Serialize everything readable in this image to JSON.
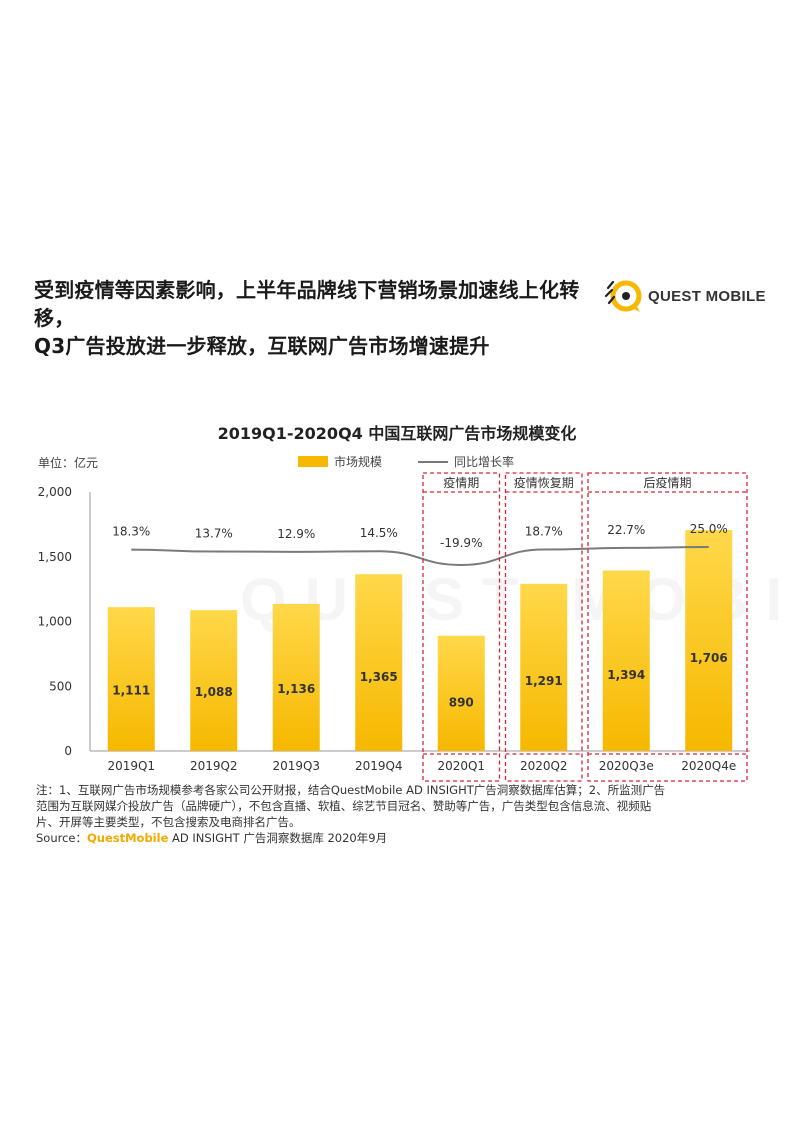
{
  "headline": {
    "line1": "受到疫情等因素影响，上半年品牌线下营销场景加速线上化转移，",
    "line2": "Q3广告投放进一步释放，互联网广告市场增速提升"
  },
  "logo": {
    "text": "QUEST MOBILE",
    "icon": "quest-mobile-logo-icon",
    "color": "#f6b800"
  },
  "legend": {
    "bar_label": "市场规模",
    "line_label": "同比增长率"
  },
  "colors": {
    "bar": "#f6b800",
    "bar_light": "#ffd84a",
    "line": "#7a7a7a",
    "dashed_box": "#d9263a"
  },
  "chart_data": {
    "type": "bar",
    "title": "2019Q1-2020Q4 中国互联网广告市场规模变化",
    "ylabel": "单位：亿元",
    "ylim": [
      0,
      2000
    ],
    "yticks": [
      "0",
      "500",
      "1,000",
      "1,500",
      "2,000"
    ],
    "categories": [
      "2019Q1",
      "2019Q2",
      "2019Q3",
      "2019Q4",
      "2020Q1",
      "2020Q2",
      "2020Q3e",
      "2020Q4e"
    ],
    "series": [
      {
        "name": "市场规模",
        "type": "bar",
        "values": [
          1111,
          1088,
          1136,
          1365,
          890,
          1291,
          1394,
          1706
        ],
        "labels": [
          "1,111",
          "1,088",
          "1,136",
          "1,365",
          "890",
          "1,291",
          "1,394",
          "1,706"
        ]
      },
      {
        "name": "同比增长率",
        "type": "line",
        "values": [
          18.3,
          13.7,
          12.9,
          14.5,
          -19.9,
          18.7,
          22.7,
          25.0
        ],
        "labels": [
          "18.3%",
          "13.7%",
          "12.9%",
          "14.5%",
          "-19.9%",
          "18.7%",
          "22.7%",
          "25.0%"
        ]
      }
    ],
    "annotations": [
      {
        "label": "疫情期",
        "categories": [
          "2020Q1"
        ]
      },
      {
        "label": "疫情恢复期",
        "categories": [
          "2020Q2"
        ]
      },
      {
        "label": "后疫情期",
        "categories": [
          "2020Q3e",
          "2020Q4e"
        ]
      }
    ],
    "grid": false
  },
  "notes": {
    "line1": "注：1、互联网广告市场规模参考各家公司公开财报，结合QuestMobile AD INSIGHT广告洞察数据库估算；2、所监测广告",
    "line2": "范围为互联网媒介投放广告（品牌硬广），不包含直播、软植、综艺节目冠名、赞助等广告，广告类型包含信息流、视频贴",
    "line3": "片、开屏等主要类型，不包含搜索及电商排名广告。",
    "source_prefix": "Source：",
    "source_brand": "QuestMobile",
    "source_rest": " AD INSIGHT 广告洞察数据库 2020年9月"
  }
}
